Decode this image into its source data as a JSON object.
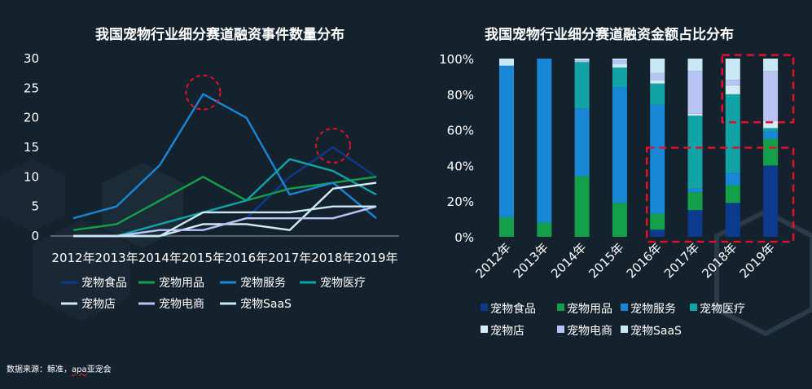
{
  "source": {
    "prefix": "数据来源：鲸准，",
    "underlined": "apa",
    "suffix": "亚宠会"
  },
  "colors": {
    "bg": "#14222e",
    "axis": "#9aa6b0",
    "highlight": "#e3102a",
    "series": [
      "#0c3a8c",
      "#14a04a",
      "#1a86d6",
      "#12a3a7",
      "#d2ebf4",
      "#b8c4f4",
      "#c7e8f4"
    ]
  },
  "legend_labels": [
    "宠物食品",
    "宠物用品",
    "宠物服务",
    "宠物医疗",
    "宠物店",
    "宠物电商",
    "宠物SaaS"
  ],
  "chart_data": [
    {
      "type": "line",
      "title": "我国宠物行业细分赛道融资事件数量分布",
      "categories": [
        "2012年",
        "2013年",
        "2014年",
        "2015年",
        "2016年",
        "2017年",
        "2018年",
        "2019年"
      ],
      "ylim": [
        0,
        30
      ],
      "yticks": [
        "0",
        "5",
        "10",
        "15",
        "20",
        "25",
        "30"
      ],
      "series": [
        {
          "name": "宠物食品",
          "values": [
            0,
            0,
            1,
            1,
            3,
            10,
            15,
            10
          ]
        },
        {
          "name": "宠物用品",
          "values": [
            1,
            2,
            6,
            10,
            6,
            8,
            9,
            10
          ]
        },
        {
          "name": "宠物服务",
          "values": [
            3,
            5,
            12,
            24,
            20,
            7,
            9,
            3
          ]
        },
        {
          "name": "宠物医疗",
          "values": [
            0,
            0,
            2,
            4,
            6,
            13,
            11,
            7
          ]
        },
        {
          "name": "宠物店",
          "values": [
            0,
            0,
            0,
            2,
            2,
            1,
            8,
            9
          ]
        },
        {
          "name": "宠物电商",
          "values": [
            0,
            0,
            1,
            1,
            3,
            3,
            3,
            5
          ]
        },
        {
          "name": "宠物SaaS",
          "values": [
            0,
            0,
            0,
            4,
            4,
            4,
            5,
            5
          ]
        }
      ],
      "highlights": [
        {
          "category": "2015年",
          "value": 24
        },
        {
          "category": "2018年",
          "value": 15
        }
      ]
    },
    {
      "type": "bar",
      "stacked": true,
      "title": "我国宠物行业细分赛道融资金额占比分布",
      "categories": [
        "2012年",
        "2013年",
        "2014年",
        "2015年",
        "2016年",
        "2017年",
        "2018年",
        "2019年"
      ],
      "ylim": [
        0,
        100
      ],
      "yticks": [
        "0%",
        "20%",
        "40%",
        "60%",
        "80%",
        "100%"
      ],
      "series": [
        {
          "name": "宠物食品",
          "values": [
            0,
            0,
            0,
            0,
            4,
            15,
            19,
            40
          ]
        },
        {
          "name": "宠物用品",
          "values": [
            11,
            8,
            34,
            19,
            9,
            10,
            10,
            15
          ]
        },
        {
          "name": "宠物服务",
          "values": [
            85,
            92,
            38,
            65,
            61,
            2,
            7,
            4
          ]
        },
        {
          "name": "宠物医疗",
          "values": [
            0,
            0,
            26,
            11,
            12,
            41,
            44,
            2
          ]
        },
        {
          "name": "宠物店",
          "values": [
            0,
            0,
            0,
            2,
            2,
            1,
            5,
            4
          ]
        },
        {
          "name": "宠物电商",
          "values": [
            0,
            0,
            1,
            2,
            4,
            24,
            3,
            28
          ]
        },
        {
          "name": "宠物SaaS",
          "values": [
            4,
            0,
            1,
            1,
            8,
            7,
            12,
            7
          ]
        }
      ],
      "highlight_ranges": [
        {
          "from": "2016年",
          "to": "2019年",
          "y_from": 0,
          "y_to": 50
        },
        {
          "from": "2018年",
          "to": "2019年",
          "y_from": 67,
          "y_to": 102
        }
      ]
    }
  ]
}
